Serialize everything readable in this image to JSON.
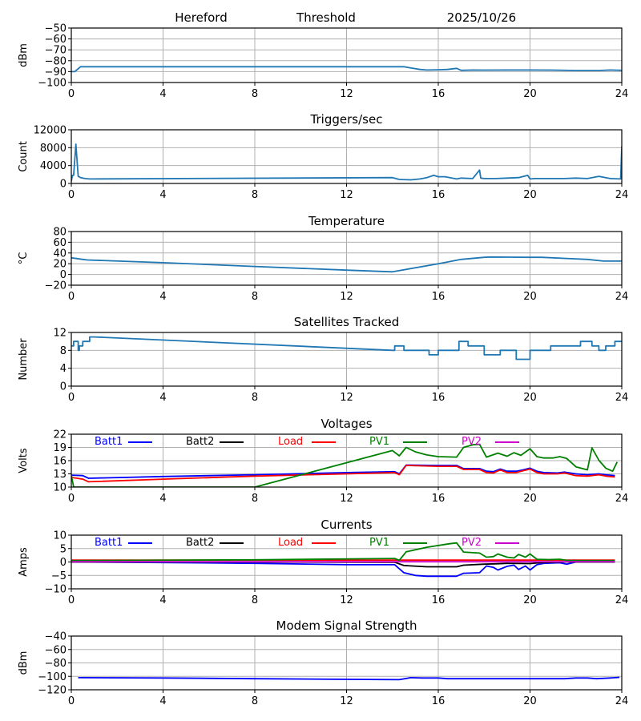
{
  "header": {
    "station": "Hereford",
    "mode": "Threshold",
    "date": "2025/10/26"
  },
  "chart_data": [
    {
      "id": "threshold",
      "type": "line",
      "title": "",
      "ylabel": "dBm",
      "xlim": [
        0,
        24
      ],
      "ylim": [
        -100,
        -50
      ],
      "xticks": [
        0,
        4,
        8,
        12,
        16,
        20,
        24
      ],
      "yticks": [
        -100,
        -90,
        -80,
        -70,
        -60,
        -50
      ],
      "grid": true,
      "series": [
        {
          "name": "Threshold",
          "color": "#1f77b4",
          "x": [
            0,
            0.15,
            0.4,
            14.5,
            14.9,
            15.2,
            15.5,
            16,
            16.4,
            16.8,
            17.0,
            17.5,
            18,
            19,
            20,
            21,
            22,
            23,
            23.5,
            24
          ],
          "y": [
            -90,
            -90,
            -85.5,
            -85.5,
            -87,
            -88,
            -88.5,
            -88.3,
            -88,
            -87,
            -88.8,
            -88.5,
            -88.6,
            -88.5,
            -88.5,
            -88.6,
            -89,
            -89,
            -88.5,
            -88.8
          ]
        }
      ]
    },
    {
      "id": "triggers",
      "type": "line",
      "title": "Triggers/sec",
      "ylabel": "Count",
      "xlim": [
        0,
        24
      ],
      "ylim": [
        0,
        12000
      ],
      "xticks": [
        0,
        4,
        8,
        12,
        16,
        20,
        24
      ],
      "yticks": [
        0,
        4000,
        8000,
        12000
      ],
      "grid": true,
      "series": [
        {
          "name": "Triggers",
          "color": "#1f77b4",
          "x": [
            0,
            0.05,
            0.1,
            0.2,
            0.3,
            0.4,
            0.6,
            0.8,
            14,
            14.3,
            14.8,
            15.2,
            15.5,
            15.8,
            16,
            16.3,
            16.8,
            17,
            17.5,
            17.8,
            17.85,
            18,
            18.5,
            19,
            19.5,
            19.9,
            20,
            20.2,
            20.8,
            21.5,
            22,
            22.5,
            23,
            23.5,
            23.95,
            24
          ],
          "y": [
            500,
            1800,
            1800,
            8800,
            1600,
            1300,
            1100,
            1000,
            1300,
            900,
            800,
            1000,
            1300,
            1800,
            1500,
            1500,
            1000,
            1200,
            1100,
            3000,
            1200,
            1100,
            1100,
            1200,
            1300,
            1800,
            1000,
            1100,
            1100,
            1100,
            1200,
            1100,
            1600,
            1100,
            1000,
            8300
          ]
        }
      ]
    },
    {
      "id": "temperature",
      "type": "line",
      "title": "Temperature",
      "ylabel": "°C",
      "xlim": [
        0,
        24
      ],
      "ylim": [
        -20,
        80
      ],
      "xticks": [
        0,
        4,
        8,
        12,
        16,
        20,
        24
      ],
      "yticks": [
        -20,
        0,
        20,
        40,
        60,
        80
      ],
      "grid": true,
      "series": [
        {
          "name": "Temperature",
          "color": "#1f77b4",
          "x": [
            0,
            0.5,
            0.7,
            4,
            8,
            12,
            14,
            16,
            17,
            18,
            18.3,
            20,
            20.5,
            21.5,
            22.5,
            23.2,
            24
          ],
          "y": [
            31,
            28,
            27,
            22,
            15,
            8,
            5,
            20,
            28,
            32,
            32.5,
            32,
            32,
            30,
            28,
            25,
            25
          ]
        }
      ]
    },
    {
      "id": "satellites",
      "type": "line",
      "title": "Satellites Tracked",
      "ylabel": "Number",
      "xlim": [
        0,
        24
      ],
      "ylim": [
        0,
        12
      ],
      "xticks": [
        0,
        4,
        8,
        12,
        16,
        20,
        24
      ],
      "yticks": [
        0,
        4,
        8,
        12
      ],
      "grid": true,
      "series": [
        {
          "name": "Satellites",
          "color": "#1f77b4",
          "x": [
            0,
            0.1,
            0.1,
            0.3,
            0.3,
            0.35,
            0.35,
            0.5,
            0.5,
            0.6,
            0.6,
            0.8,
            0.8,
            1.0,
            14,
            14.1,
            14.1,
            14.5,
            14.5,
            15.1,
            15.1,
            15.6,
            15.6,
            16,
            16,
            16.9,
            16.9,
            17.3,
            17.3,
            18.0,
            18.0,
            18.7,
            18.7,
            19.4,
            19.4,
            20,
            20,
            20.9,
            20.9,
            21.3,
            21.3,
            22.2,
            22.2,
            22.7,
            22.7,
            23.0,
            23.0,
            23.3,
            23.3,
            23.7,
            23.7,
            24
          ],
          "y": [
            9,
            9,
            10,
            10,
            8,
            8,
            9,
            9,
            10,
            10,
            10,
            10,
            11,
            11,
            8,
            8,
            9,
            9,
            8,
            8,
            8,
            8,
            7,
            7,
            8,
            8,
            10,
            10,
            9,
            9,
            7,
            7,
            8,
            8,
            6,
            6,
            8,
            8,
            9,
            9,
            9,
            9,
            10,
            10,
            9,
            9,
            8,
            8,
            9,
            9,
            10,
            10
          ]
        }
      ]
    },
    {
      "id": "voltages",
      "type": "line",
      "title": "Voltages",
      "ylabel": "Volts",
      "xlim": [
        0,
        24
      ],
      "ylim": [
        10,
        22
      ],
      "xticks": [
        0,
        4,
        8,
        12,
        16,
        20,
        24
      ],
      "yticks": [
        10,
        13,
        16,
        19,
        22
      ],
      "grid": true,
      "legend": "top-inline",
      "series": [
        {
          "name": "Batt1",
          "color": "#0000ff",
          "x": [
            0,
            0.5,
            0.75,
            4,
            8,
            12,
            14.1,
            14.3,
            14.6,
            16,
            16.8,
            17.1,
            17.8,
            18.1,
            18.4,
            18.7,
            19.0,
            19.4,
            19.7,
            20,
            20.3,
            20.6,
            21.2,
            21.5,
            22,
            22.5,
            23,
            23.3,
            23.7
          ],
          "y": [
            12.7,
            12.6,
            12.0,
            12.4,
            12.8,
            13.3,
            13.5,
            13.0,
            15.0,
            14.9,
            14.9,
            14.2,
            14.2,
            13.6,
            13.5,
            14.1,
            13.6,
            13.6,
            13.9,
            14.3,
            13.6,
            13.3,
            13.2,
            13.4,
            13.0,
            12.8,
            13.0,
            12.8,
            12.6
          ]
        },
        {
          "name": "Batt2",
          "color": "#000000",
          "x": [],
          "y": []
        },
        {
          "name": "Load",
          "color": "#ff0000",
          "x": [
            0,
            0.5,
            0.75,
            4,
            8,
            12,
            14.1,
            14.3,
            14.6,
            16,
            16.8,
            17.1,
            17.8,
            18.1,
            18.4,
            18.7,
            19.0,
            19.4,
            19.7,
            20,
            20.3,
            20.6,
            21.2,
            21.5,
            22,
            22.5,
            23,
            23.3,
            23.7
          ],
          "y": [
            12.2,
            11.8,
            11.2,
            11.8,
            12.5,
            13.0,
            13.3,
            12.8,
            14.9,
            14.7,
            14.7,
            14.0,
            14.0,
            13.3,
            13.2,
            13.9,
            13.3,
            13.3,
            13.7,
            14.1,
            13.3,
            13.0,
            13.0,
            13.2,
            12.6,
            12.5,
            12.8,
            12.5,
            12.3
          ]
        },
        {
          "name": "PV1",
          "color": "#008000",
          "x": [
            0,
            0.1,
            8,
            14.0,
            14.3,
            14.6,
            15.0,
            15.5,
            16,
            16.8,
            17.1,
            17.5,
            17.8,
            18.1,
            18.6,
            19.0,
            19.3,
            19.6,
            20.0,
            20.3,
            20.6,
            21.0,
            21.3,
            21.6,
            22.0,
            22.5,
            22.7,
            23.0,
            23.3,
            23.6,
            23.8
          ],
          "y": [
            12.7,
            10.0,
            10.0,
            18.3,
            17.1,
            19.0,
            18.0,
            17.3,
            16.9,
            16.8,
            19.0,
            19.6,
            19.7,
            16.8,
            17.7,
            17.0,
            17.8,
            17.2,
            18.7,
            16.9,
            16.6,
            16.6,
            16.9,
            16.5,
            14.6,
            13.9,
            18.9,
            16.1,
            14.3,
            13.6,
            15.7
          ]
        },
        {
          "name": "PV2",
          "color": "#cc00cc",
          "x": [],
          "y": []
        }
      ]
    },
    {
      "id": "currents",
      "type": "line",
      "title": "Currents",
      "ylabel": "Amps",
      "xlim": [
        0,
        24
      ],
      "ylim": [
        -10,
        10
      ],
      "xticks": [
        0,
        4,
        8,
        12,
        16,
        20,
        24
      ],
      "yticks": [
        -10,
        -5,
        0,
        5,
        10
      ],
      "grid": true,
      "legend": "top-inline",
      "series": [
        {
          "name": "Batt1",
          "color": "#0000ff",
          "x": [
            0,
            4,
            8,
            12,
            14.1,
            14.5,
            15.0,
            15.5,
            16,
            16.8,
            17.1,
            17.8,
            18.1,
            18.4,
            18.6,
            19.0,
            19.3,
            19.5,
            19.8,
            20.0,
            20.3,
            20.6,
            21.3,
            21.6,
            22,
            23.7
          ],
          "y": [
            0,
            -0.2,
            -0.5,
            -1.0,
            -1.0,
            -4.0,
            -5.0,
            -5.3,
            -5.3,
            -5.3,
            -4.2,
            -4.0,
            -1.5,
            -2.0,
            -3.0,
            -1.6,
            -1.2,
            -2.8,
            -1.5,
            -3.0,
            -1.0,
            -0.5,
            -0.3,
            -0.8,
            0,
            0
          ]
        },
        {
          "name": "Batt2",
          "color": "#000000",
          "x": [
            0,
            8,
            14.1,
            14.5,
            15.5,
            16.8,
            17.1,
            18,
            18.5,
            19,
            20,
            20.5,
            21.5,
            23.7
          ],
          "y": [
            0,
            0,
            -0.1,
            -1.3,
            -1.8,
            -1.8,
            -1.2,
            -0.8,
            -0.7,
            -0.5,
            -0.6,
            -0.2,
            0,
            0
          ]
        },
        {
          "name": "Load",
          "color": "#ff0000",
          "x": [
            0,
            23.7
          ],
          "y": [
            0.7,
            0.7
          ]
        },
        {
          "name": "PV1",
          "color": "#008000",
          "x": [
            0,
            8,
            14.1,
            14.3,
            14.6,
            15.5,
            16.5,
            16.8,
            17.1,
            17.8,
            18.1,
            18.4,
            18.6,
            19.0,
            19.3,
            19.5,
            19.8,
            20.0,
            20.3,
            20.8,
            21.3,
            21.6,
            22.0,
            23.7
          ],
          "y": [
            0.5,
            0.8,
            1.3,
            0.6,
            3.8,
            5.5,
            6.8,
            7.1,
            3.7,
            3.3,
            1.8,
            2.0,
            3.0,
            1.8,
            1.5,
            2.8,
            1.8,
            3.0,
            1.0,
            0.9,
            1.0,
            0.6,
            0.5,
            0.5
          ]
        },
        {
          "name": "PV2",
          "color": "#cc00cc",
          "x": [
            0,
            23.7
          ],
          "y": [
            0.1,
            0.1
          ]
        }
      ]
    },
    {
      "id": "modem",
      "type": "line",
      "title": "Modem Signal Strength",
      "ylabel": "dBm",
      "xlim": [
        0,
        24
      ],
      "ylim": [
        -120,
        -40
      ],
      "xticks": [
        0,
        4,
        8,
        12,
        16,
        20,
        24
      ],
      "yticks": [
        -120,
        -100,
        -80,
        -60,
        -40
      ],
      "grid": true,
      "series": [
        {
          "name": "Modem",
          "color": "#0000ff",
          "x": [
            0.3,
            4,
            8,
            12,
            14.3,
            14.8,
            15.3,
            16.0,
            16.4,
            18,
            20,
            21.5,
            22.0,
            22.5,
            22.9,
            23.5,
            23.9
          ],
          "y": [
            -102,
            -102.5,
            -103.5,
            -104.5,
            -105,
            -102,
            -102.5,
            -102.5,
            -103.5,
            -103.5,
            -103.5,
            -103.5,
            -102.5,
            -102.5,
            -103.5,
            -102.5,
            -101.5
          ]
        }
      ]
    }
  ]
}
